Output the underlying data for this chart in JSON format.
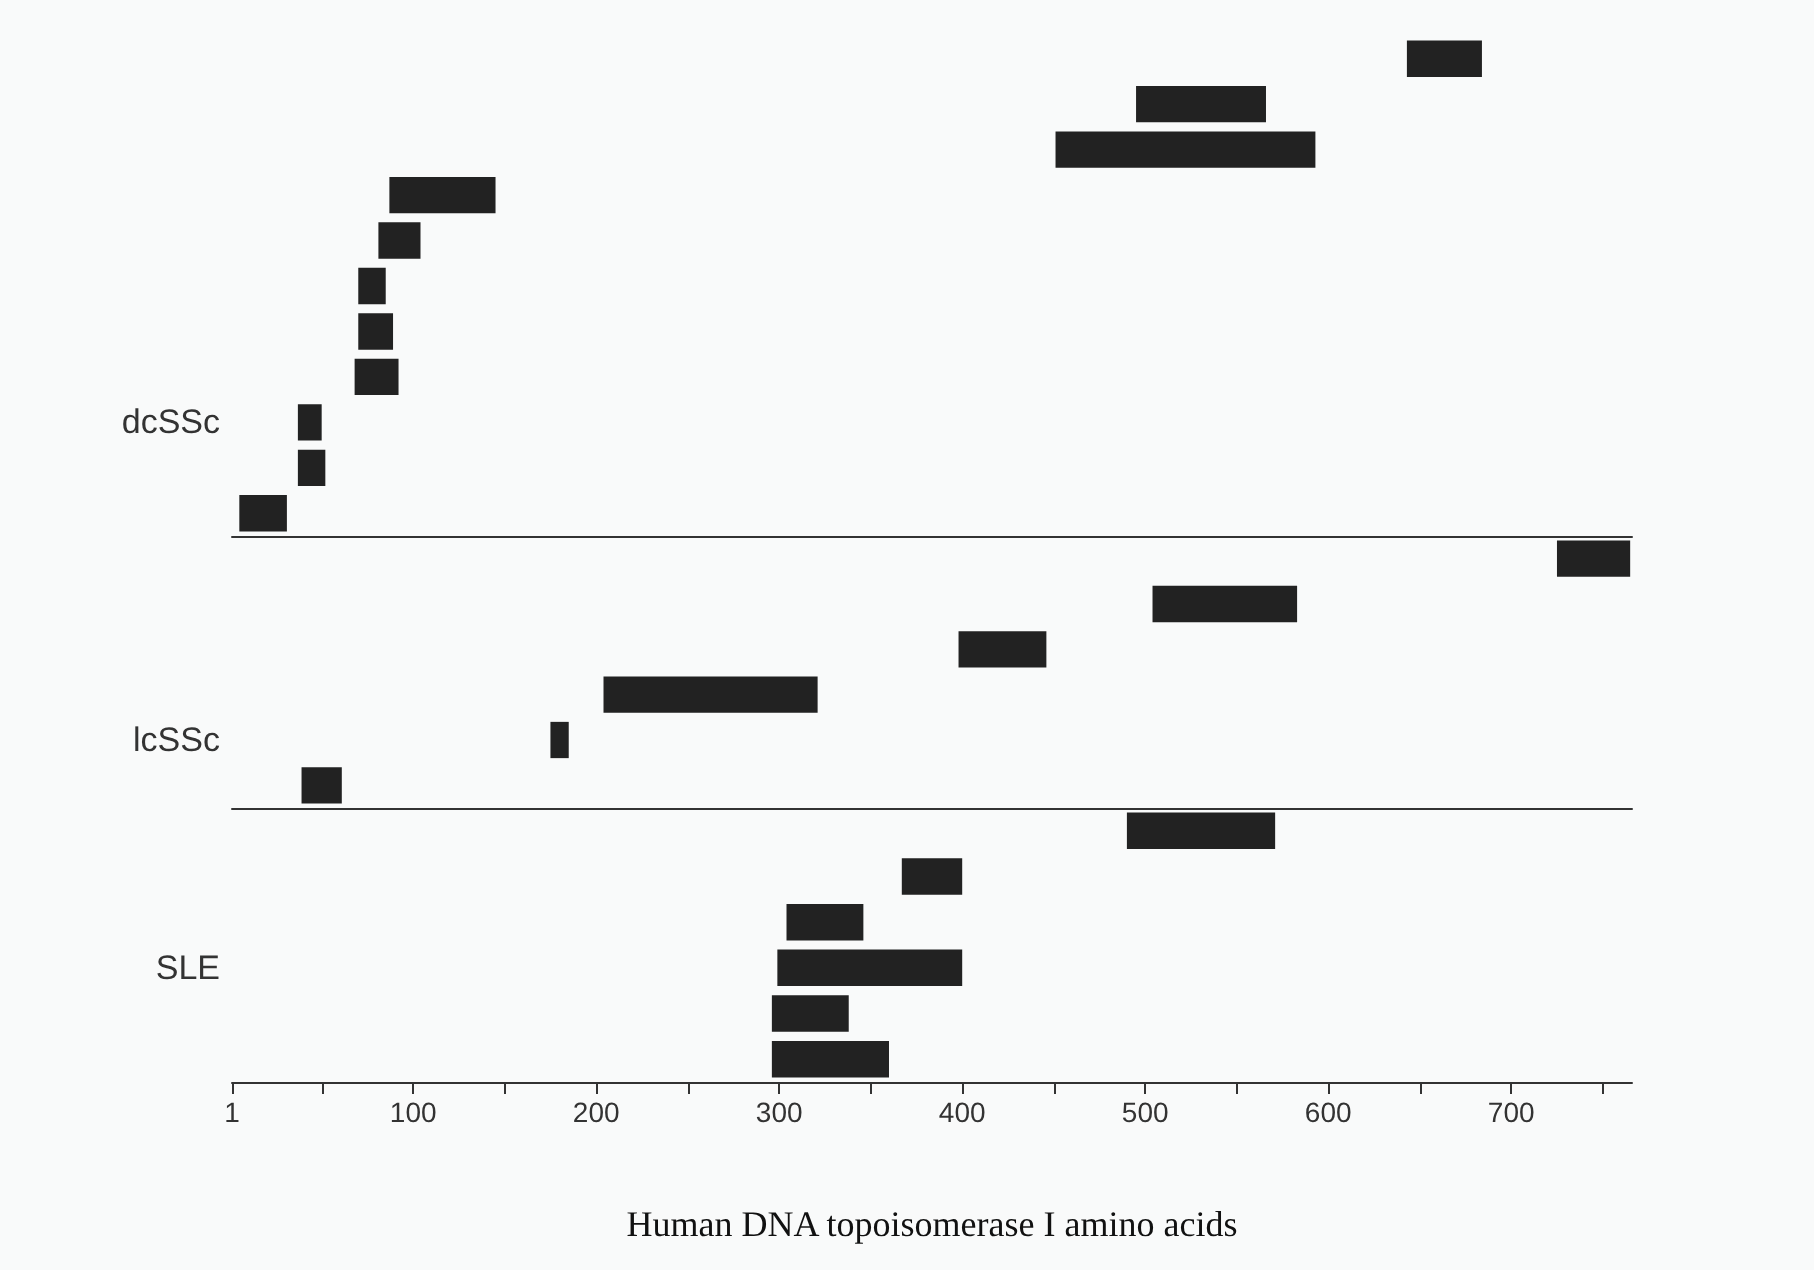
{
  "chart_data": [
    {
      "type": "bar",
      "orientation": "horizontal",
      "categories": [
        null,
        null,
        null,
        null,
        null,
        null,
        null,
        null,
        "dcSSc",
        null,
        null
      ],
      "base": [
        643,
        495,
        451,
        87,
        81,
        70,
        70,
        68,
        37,
        37,
        5
      ],
      "values": [
        41,
        71,
        142,
        58,
        23,
        15,
        19,
        24,
        13,
        15,
        26
      ],
      "color": "#222222",
      "xlim": [
        1,
        766
      ],
      "tick_labels": "y"
    },
    {
      "type": "bar",
      "orientation": "horizontal",
      "categories": [
        null,
        null,
        null,
        null,
        "lcSSc",
        null
      ],
      "base": [
        725,
        504,
        398,
        204,
        175,
        39
      ],
      "values": [
        40,
        79,
        48,
        117,
        10,
        22
      ],
      "color": "#222222",
      "xlim": [
        1,
        766
      ],
      "tick_labels": "y"
    },
    {
      "type": "bar",
      "orientation": "horizontal",
      "categories": [
        null,
        null,
        null,
        "SLE",
        null,
        null
      ],
      "base": [
        490,
        367,
        304,
        299,
        296,
        296
      ],
      "values": [
        81,
        33,
        42,
        101,
        42,
        64
      ],
      "color": "#222222",
      "xlim": [
        1,
        766
      ],
      "xticks": [
        1,
        {
          "value": 50,
          "label": null
        },
        100,
        {
          "value": 150,
          "label": null
        },
        200,
        {
          "value": 250,
          "label": null
        },
        300,
        {
          "value": 350,
          "label": null
        },
        400,
        {
          "value": 450,
          "label": null
        },
        500,
        {
          "value": 550,
          "label": null
        },
        600,
        {
          "value": 650,
          "label": null
        },
        700,
        {
          "value": 750,
          "label": null
        }
      ],
      "xlabel": "Human DNA topoisomerase I amino acids"
    }
  ]
}
